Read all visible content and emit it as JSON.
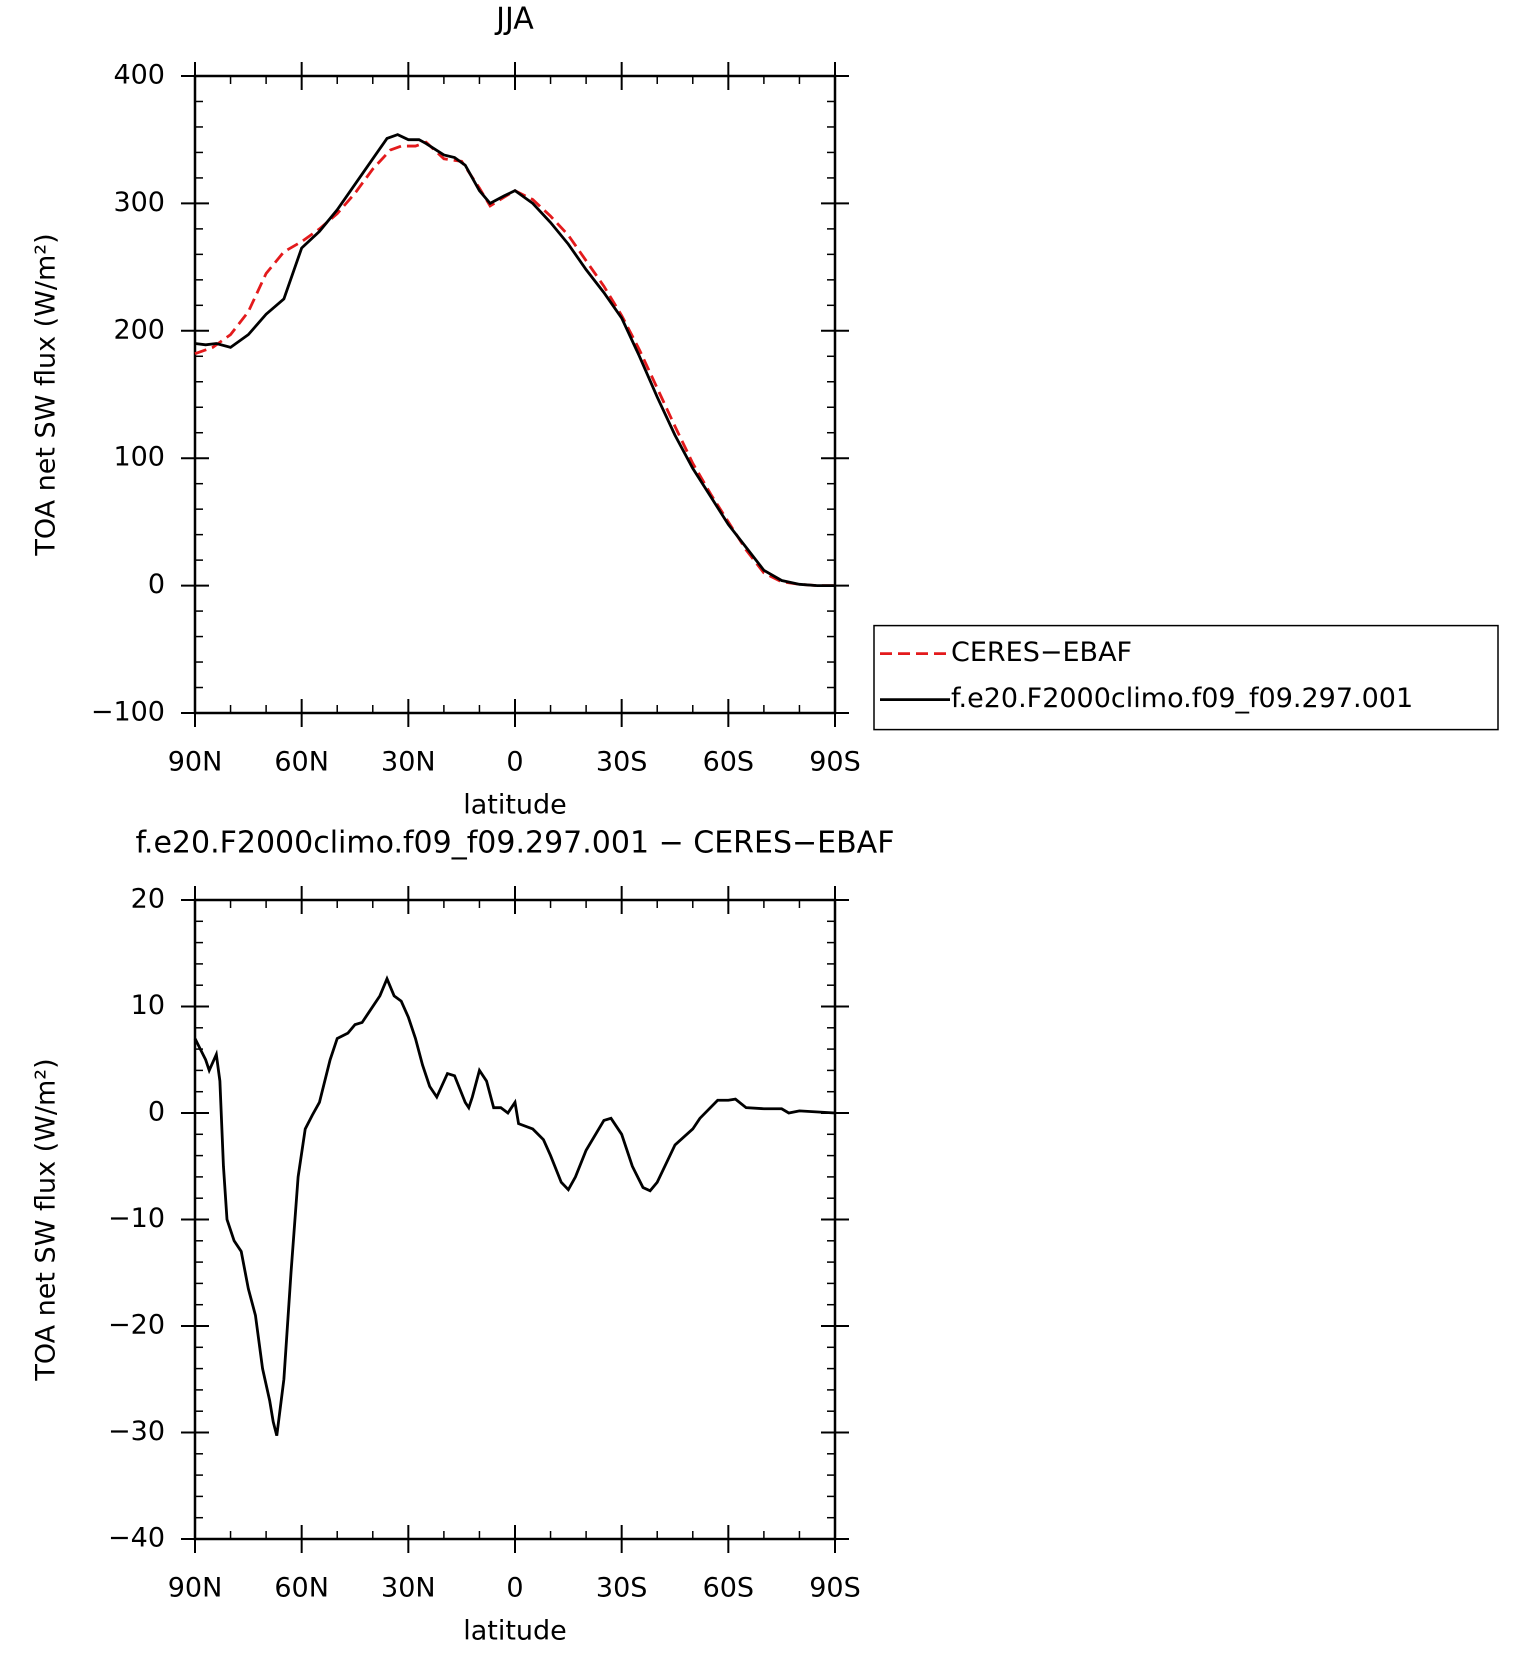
{
  "chart_data": [
    {
      "type": "line",
      "title": "JJA",
      "xlabel": "latitude",
      "ylabel": "TOA net SW flux (W/m²)",
      "xlim": [
        90,
        -90
      ],
      "xticks": [
        {
          "value": 90,
          "label": "90N"
        },
        {
          "value": 60,
          "label": "60N"
        },
        {
          "value": 30,
          "label": "30N"
        },
        0,
        {
          "value": -30,
          "label": "30S"
        },
        {
          "value": -60,
          "label": "60S"
        },
        {
          "value": -90,
          "label": "90S"
        }
      ],
      "ylim": [
        -100,
        400
      ],
      "yticks": [
        {
          "value": -100,
          "label": "−100"
        },
        0,
        100,
        200,
        300,
        400
      ],
      "legend": "right",
      "series": [
        {
          "name": "CERES−EBAF",
          "color": "#e31a1c",
          "dash": true,
          "x": [
            90,
            85,
            80,
            75,
            70,
            65,
            60,
            55,
            50,
            45,
            40,
            35,
            32,
            28,
            25,
            20,
            15,
            10,
            7,
            3,
            0,
            -5,
            -10,
            -15,
            -20,
            -25,
            -30,
            -35,
            -40,
            -45,
            -50,
            -55,
            -60,
            -65,
            -70,
            -75,
            -80,
            -85,
            -90
          ],
          "values": [
            182,
            187,
            197,
            215,
            245,
            262,
            270,
            280,
            292,
            308,
            327,
            342,
            345,
            345,
            348,
            335,
            333,
            312,
            298,
            305,
            310,
            303,
            290,
            275,
            255,
            235,
            212,
            185,
            155,
            125,
            96,
            72,
            50,
            28,
            10,
            3,
            1,
            0,
            0
          ]
        },
        {
          "name": "f.e20.F2000climo.f09_f09.297.001",
          "color": "#000000",
          "dash": false,
          "x": [
            90,
            87,
            84,
            80,
            75,
            70,
            65,
            60,
            55,
            50,
            45,
            40,
            36,
            33,
            30,
            27,
            25,
            20,
            17,
            14,
            10,
            7,
            3,
            0,
            -5,
            -10,
            -15,
            -20,
            -25,
            -30,
            -35,
            -40,
            -45,
            -50,
            -55,
            -60,
            -65,
            -70,
            -75,
            -80,
            -85,
            -90
          ],
          "values": [
            190,
            189,
            190,
            187,
            197,
            213,
            225,
            265,
            278,
            295,
            315,
            335,
            351,
            354,
            350,
            350,
            347,
            338,
            336,
            330,
            310,
            300,
            306,
            310,
            300,
            285,
            268,
            248,
            230,
            210,
            180,
            148,
            118,
            92,
            70,
            48,
            30,
            12,
            4,
            1,
            0,
            0
          ]
        }
      ]
    },
    {
      "type": "line",
      "title": "f.e20.F2000climo.f09_f09.297.001 − CERES−EBAF",
      "xlabel": "latitude",
      "ylabel": "TOA net SW flux (W/m²)",
      "xlim": [
        90,
        -90
      ],
      "xticks": [
        {
          "value": 90,
          "label": "90N"
        },
        {
          "value": 60,
          "label": "60N"
        },
        {
          "value": 30,
          "label": "30N"
        },
        0,
        {
          "value": -30,
          "label": "30S"
        },
        {
          "value": -60,
          "label": "60S"
        },
        {
          "value": -90,
          "label": "90S"
        }
      ],
      "ylim": [
        -40,
        20
      ],
      "yticks": [
        {
          "value": -40,
          "label": "−40"
        },
        {
          "value": -30,
          "label": "−30"
        },
        {
          "value": -20,
          "label": "−20"
        },
        {
          "value": -10,
          "label": "−10"
        },
        0,
        10,
        20
      ],
      "series": [
        {
          "color": "#000000",
          "dash": false,
          "x": [
            90,
            87,
            86,
            84,
            83,
            82,
            81,
            79,
            77,
            75,
            73,
            71,
            69,
            68,
            67,
            65,
            63,
            61,
            59,
            57,
            55,
            52,
            50,
            47,
            45,
            43,
            41,
            38,
            36,
            34,
            32,
            30,
            28,
            26,
            24,
            22,
            19,
            17,
            14,
            13,
            12,
            10,
            8,
            6,
            4,
            2,
            0,
            -1,
            -5,
            -8,
            -10,
            -13,
            -15,
            -17,
            -20,
            -25,
            -27,
            -30,
            -33,
            -36,
            -38,
            -40,
            -45,
            -50,
            -52,
            -57,
            -60,
            -62,
            -65,
            -70,
            -75,
            -77,
            -80,
            -90
          ],
          "values": [
            7,
            5,
            4,
            5.5,
            3,
            -5,
            -10,
            -12,
            -13,
            -16.5,
            -19,
            -24,
            -27,
            -29,
            -30.3,
            -25,
            -15,
            -6,
            -1.5,
            -0.2,
            1,
            5,
            7,
            7.5,
            8.3,
            8.5,
            9.5,
            11,
            12.6,
            11,
            10.5,
            9,
            7,
            4.5,
            2.5,
            1.5,
            3.7,
            3.5,
            1,
            0.5,
            1.5,
            4,
            3,
            0.5,
            0.5,
            0,
            1,
            -1,
            -1.5,
            -2.5,
            -4,
            -6.5,
            -7.2,
            -6,
            -3.5,
            -0.7,
            -0.5,
            -2,
            -5,
            -7,
            -7.3,
            -6.5,
            -3,
            -1.5,
            -0.5,
            1.2,
            1.2,
            1.3,
            0.5,
            0.4,
            0.4,
            0,
            0.2,
            0
          ]
        }
      ]
    }
  ]
}
